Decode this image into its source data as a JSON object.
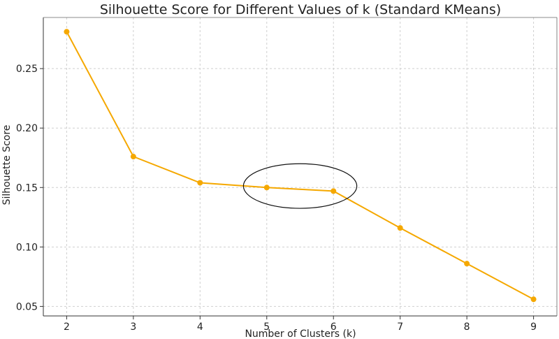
{
  "chart_data": {
    "type": "line",
    "title": "Silhouette Score for Different Values of k (Standard KMeans)",
    "xlabel": "Number of Clusters (k)",
    "ylabel": "Silhouette Score",
    "x": [
      2,
      3,
      4,
      5,
      6,
      7,
      8,
      9
    ],
    "series": [
      {
        "values": [
          0.281,
          0.176,
          0.154,
          0.15,
          0.147,
          0.116,
          0.086,
          0.056
        ]
      }
    ],
    "xlim": [
      1.65,
      9.35
    ],
    "ylim": [
      0.042,
      0.293
    ],
    "xticks": [
      2,
      3,
      4,
      5,
      6,
      7,
      8,
      9
    ],
    "yticks": [
      0.05,
      0.1,
      0.15,
      0.2,
      0.25
    ],
    "ytick_labels": [
      "0.05",
      "0.10",
      "0.15",
      "0.20",
      "0.25"
    ],
    "grid": true,
    "line_color": "#F5A800",
    "highlight_ellipse": {
      "x_range": [
        4.65,
        6.35
      ],
      "y_range": [
        0.1325,
        0.17
      ]
    }
  }
}
